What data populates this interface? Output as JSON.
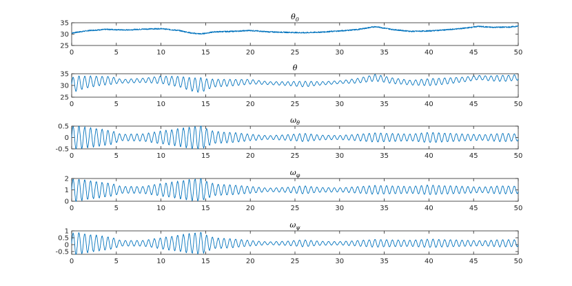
{
  "chart_data": [
    {
      "type": "line",
      "title": "θ",
      "title_subscript": "0",
      "xlim": [
        0,
        50
      ],
      "ylim": [
        25,
        35
      ],
      "xticks": [
        0,
        5,
        10,
        15,
        20,
        25,
        30,
        35,
        40,
        45,
        50
      ],
      "yticks": [
        25,
        30,
        35
      ],
      "line_color": "#0072BD",
      "series": [
        {
          "x": [
            0,
            2,
            4,
            6,
            8,
            10,
            12,
            13.5,
            14.5,
            16,
            18,
            20,
            22,
            24,
            26,
            28,
            30,
            32,
            34,
            36,
            38,
            40,
            42,
            44,
            45.5,
            47,
            49,
            50
          ],
          "y": [
            30.5,
            31.6,
            32.1,
            31.8,
            32.2,
            32.4,
            31.6,
            30.4,
            30.1,
            31.0,
            31.2,
            31.6,
            31.0,
            30.8,
            30.6,
            30.9,
            31.4,
            32.0,
            33.3,
            32.0,
            31.2,
            31.4,
            31.9,
            32.6,
            33.4,
            33.0,
            33.1,
            33.5
          ]
        }
      ]
    },
    {
      "type": "line",
      "title": "θ",
      "title_subscript": "",
      "xlim": [
        0,
        50
      ],
      "ylim": [
        25,
        35
      ],
      "xticks": [
        0,
        5,
        10,
        15,
        20,
        25,
        30,
        35,
        40,
        45,
        50
      ],
      "yticks": [
        25,
        30,
        35
      ],
      "line_color": "#0072BD",
      "oscillation": {
        "period": 0.65,
        "baseline_from_panel": 0
      },
      "series": [
        {
          "x": [
            0,
            0.5,
            1.5,
            3,
            4.5,
            5.5,
            8,
            10,
            12,
            13.5,
            14.5,
            15,
            16,
            18,
            20,
            22,
            24,
            26,
            28,
            30,
            32,
            34,
            36,
            38,
            40,
            42,
            44,
            46,
            48,
            50
          ],
          "amplitude": [
            2.8,
            3.2,
            2.6,
            2.0,
            1.6,
            0.8,
            0.9,
            1.6,
            2.2,
            2.8,
            3.2,
            2.4,
            1.6,
            1.4,
            1.0,
            0.6,
            0.8,
            1.2,
            0.7,
            0.6,
            1.0,
            1.4,
            1.2,
            1.0,
            1.5,
            1.3,
            1.0,
            0.9,
            1.3,
            1.2
          ]
        }
      ]
    },
    {
      "type": "line",
      "title": "ω",
      "title_subscript": "θ",
      "xlim": [
        0,
        50
      ],
      "ylim": [
        -0.5,
        0.5
      ],
      "xticks": [
        0,
        5,
        10,
        15,
        20,
        25,
        30,
        35,
        40,
        45,
        50
      ],
      "yticks": [
        -0.5,
        0,
        0.5
      ],
      "line_color": "#0072BD",
      "oscillation": {
        "period": 0.65,
        "offset": 0.0
      },
      "series": [
        {
          "x": [
            0,
            0.5,
            1.5,
            3,
            4.5,
            5.5,
            8,
            10,
            12,
            13.5,
            14.5,
            15,
            16,
            18,
            20,
            22,
            24,
            26,
            28,
            30,
            32,
            34,
            36,
            38,
            40,
            42,
            44,
            46,
            48,
            50
          ],
          "amplitude": [
            0.48,
            0.52,
            0.45,
            0.38,
            0.3,
            0.14,
            0.16,
            0.28,
            0.38,
            0.48,
            0.52,
            0.4,
            0.26,
            0.22,
            0.14,
            0.08,
            0.12,
            0.18,
            0.1,
            0.09,
            0.14,
            0.2,
            0.17,
            0.15,
            0.22,
            0.19,
            0.15,
            0.12,
            0.18,
            0.16
          ]
        }
      ]
    },
    {
      "type": "line",
      "title": "ω",
      "title_subscript": "φ",
      "xlim": [
        0,
        50
      ],
      "ylim": [
        0,
        2
      ],
      "xticks": [
        0,
        5,
        10,
        15,
        20,
        25,
        30,
        35,
        40,
        45,
        50
      ],
      "yticks": [
        0,
        1,
        2
      ],
      "line_color": "#0072BD",
      "oscillation": {
        "period": 0.65,
        "offset": 1.0
      },
      "series": [
        {
          "x": [
            0,
            0.5,
            1.5,
            3,
            4.5,
            5.5,
            8,
            10,
            12,
            13.5,
            14.5,
            15,
            16,
            18,
            20,
            22,
            24,
            26,
            28,
            30,
            32,
            34,
            36,
            38,
            40,
            42,
            44,
            46,
            48,
            50
          ],
          "amplitude": [
            0.92,
            1.0,
            0.85,
            0.7,
            0.55,
            0.3,
            0.3,
            0.55,
            0.75,
            0.92,
            1.0,
            0.78,
            0.5,
            0.42,
            0.3,
            0.15,
            0.22,
            0.35,
            0.2,
            0.18,
            0.28,
            0.38,
            0.34,
            0.3,
            0.42,
            0.36,
            0.3,
            0.24,
            0.35,
            0.32
          ]
        }
      ]
    },
    {
      "type": "line",
      "title": "ω",
      "title_subscript": "ψ",
      "xlim": [
        0,
        50
      ],
      "ylim": [
        -0.7,
        1
      ],
      "xticks": [
        0,
        5,
        10,
        15,
        20,
        25,
        30,
        35,
        40,
        45,
        50
      ],
      "yticks": [
        -0.5,
        0,
        0.5,
        1
      ],
      "line_color": "#0072BD",
      "oscillation": {
        "period": 0.65,
        "offset": 0.1
      },
      "series": [
        {
          "x": [
            0,
            0.5,
            1.5,
            3,
            4.5,
            5.5,
            8,
            10,
            12,
            13.5,
            14.5,
            15,
            16,
            18,
            20,
            22,
            24,
            26,
            28,
            30,
            32,
            34,
            36,
            38,
            40,
            42,
            44,
            46,
            48,
            50
          ],
          "amplitude": [
            0.72,
            0.8,
            0.68,
            0.55,
            0.42,
            0.2,
            0.2,
            0.4,
            0.58,
            0.72,
            0.8,
            0.6,
            0.38,
            0.32,
            0.2,
            0.1,
            0.15,
            0.25,
            0.14,
            0.12,
            0.2,
            0.28,
            0.24,
            0.22,
            0.3,
            0.26,
            0.22,
            0.18,
            0.26,
            0.24
          ]
        }
      ]
    }
  ]
}
